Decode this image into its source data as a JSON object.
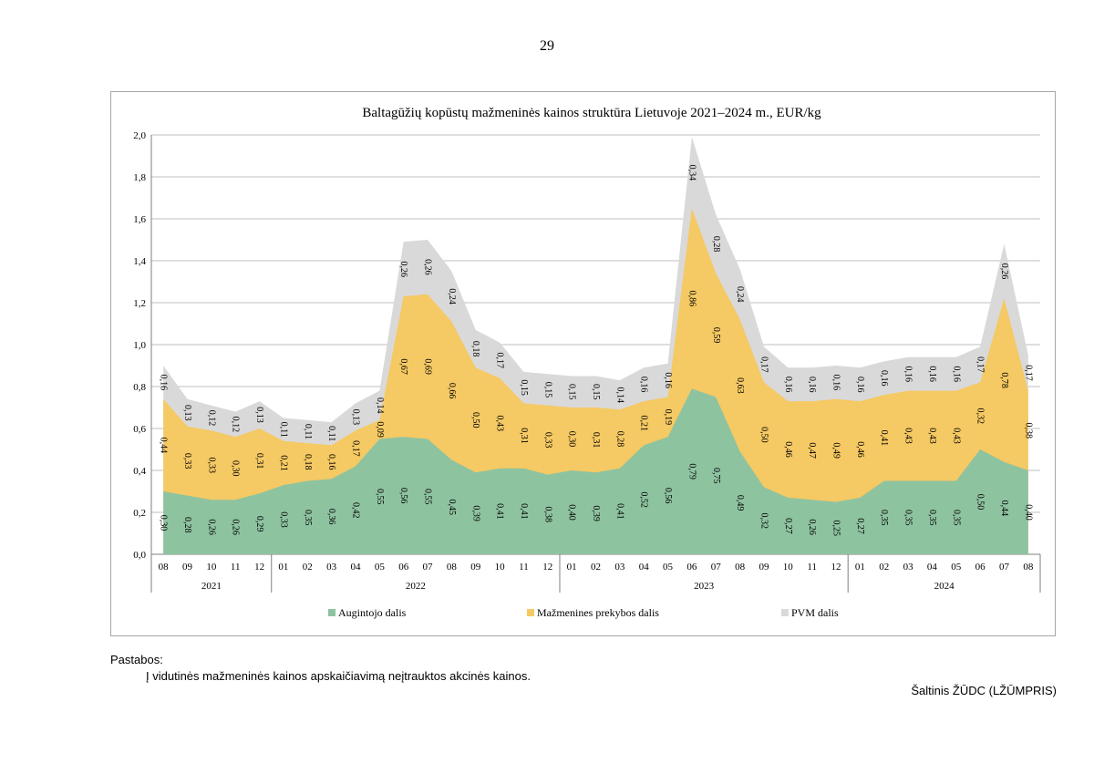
{
  "page_number": "29",
  "colors": {
    "producer": "#8ec3a0",
    "retail": "#f5c963",
    "vat": "#d9d9d9",
    "grid": "#bfbfbf",
    "axis": "#7f7f7f"
  },
  "chart_data": {
    "type": "area",
    "stacked": true,
    "title": "Baltagūžių kopūstų mažmeninės kainos struktūra Lietuvoje 2021–2024 m., EUR/kg",
    "xlabel": "",
    "ylabel": "",
    "ylim": [
      0,
      2.0
    ],
    "y_ticks": [
      "0,0",
      "0,2",
      "0,4",
      "0,6",
      "0,8",
      "1,0",
      "1,2",
      "1,4",
      "1,6",
      "1,8",
      "2,0"
    ],
    "grid": true,
    "legend_position": "bottom",
    "categories": [
      "08",
      "09",
      "10",
      "11",
      "12",
      "01",
      "02",
      "03",
      "04",
      "05",
      "06",
      "07",
      "08",
      "09",
      "10",
      "11",
      "12",
      "01",
      "02",
      "03",
      "04",
      "05",
      "06",
      "07",
      "08",
      "09",
      "10",
      "11",
      "12",
      "01",
      "02",
      "03",
      "04",
      "05",
      "06",
      "07",
      "08"
    ],
    "years": [
      {
        "label": "2021",
        "count": 5
      },
      {
        "label": "2022",
        "count": 12
      },
      {
        "label": "2023",
        "count": 12
      },
      {
        "label": "2024",
        "count": 8
      }
    ],
    "series": [
      {
        "name": "Augintojo dalis",
        "values": [
          0.3,
          0.28,
          0.26,
          0.26,
          0.29,
          0.33,
          0.35,
          0.36,
          0.42,
          0.55,
          0.56,
          0.55,
          0.45,
          0.39,
          0.41,
          0.41,
          0.38,
          0.4,
          0.39,
          0.41,
          0.52,
          0.56,
          0.79,
          0.75,
          0.49,
          0.32,
          0.27,
          0.26,
          0.25,
          0.27,
          0.35,
          0.35,
          0.35,
          0.35,
          0.5,
          0.44,
          0.4
        ],
        "labels": [
          "0,30",
          "0,28",
          "0,26",
          "0,26",
          "0,29",
          "0,33",
          "0,35",
          "0,36",
          "0,42",
          "0,55",
          "0,56",
          "0,55",
          "0,45",
          "0,39",
          "0,41",
          "0,41",
          "0,38",
          "0,40",
          "0,39",
          "0,41",
          "0,52",
          "0,56",
          "0,79",
          "0,75",
          "0,49",
          "0,32",
          "0,27",
          "0,26",
          "0,25",
          "0,27",
          "0,35",
          "0,35",
          "0,35",
          "0,35",
          "0,50",
          "0,44",
          "0,40"
        ]
      },
      {
        "name": "Mažmenines prekybos dalis",
        "values": [
          0.44,
          0.33,
          0.33,
          0.3,
          0.31,
          0.21,
          0.18,
          0.16,
          0.17,
          0.09,
          0.67,
          0.69,
          0.66,
          0.5,
          0.43,
          0.31,
          0.33,
          0.3,
          0.31,
          0.28,
          0.21,
          0.19,
          0.86,
          0.59,
          0.63,
          0.5,
          0.46,
          0.47,
          0.49,
          0.46,
          0.41,
          0.43,
          0.43,
          0.43,
          0.32,
          0.78,
          0.38
        ],
        "labels": [
          "0,44",
          "0,33",
          "0,33",
          "0,30",
          "0,31",
          "0,21",
          "0,18",
          "0,16",
          "0,17",
          "0,09",
          "0,67",
          "0,69",
          "0,66",
          "0,50",
          "0,43",
          "0,31",
          "0,33",
          "0,30",
          "0,31",
          "0,28",
          "0,21",
          "0,19",
          "0,86",
          "0,59",
          "0,63",
          "0,50",
          "0,46",
          "0,47",
          "0,49",
          "0,46",
          "0,41",
          "0,43",
          "0,43",
          "0,43",
          "0,32",
          "0,78",
          "0,38"
        ]
      },
      {
        "name": "PVM dalis",
        "values": [
          0.16,
          0.13,
          0.12,
          0.12,
          0.13,
          0.11,
          0.11,
          0.11,
          0.13,
          0.14,
          0.26,
          0.26,
          0.24,
          0.18,
          0.17,
          0.15,
          0.15,
          0.15,
          0.15,
          0.14,
          0.16,
          0.16,
          0.34,
          0.28,
          0.24,
          0.17,
          0.16,
          0.16,
          0.16,
          0.16,
          0.16,
          0.16,
          0.16,
          0.16,
          0.17,
          0.26,
          0.17
        ],
        "labels": [
          "0,16",
          "0,13",
          "0,12",
          "0,12",
          "0,13",
          "0,11",
          "0,11",
          "0,11",
          "0,13",
          "0,14",
          "0,26",
          "0,26",
          "0,24",
          "0,18",
          "0,17",
          "0,15",
          "0,15",
          "0,15",
          "0,15",
          "0,14",
          "0,16",
          "0,16",
          "0,34",
          "0,28",
          "0,24",
          "0,17",
          "0,16",
          "0,16",
          "0,16",
          "0,16",
          "0,16",
          "0,16",
          "0,16",
          "0,16",
          "0,17",
          "0,26",
          "0,17"
        ]
      }
    ]
  },
  "notes": {
    "heading": "Pastabos:",
    "text": "Į vidutinės mažmeninės kainos apskaičiavimą neįtrauktos akcinės kainos."
  },
  "source": "Šaltinis ŽŪDC (LŽŪMPRIS)"
}
